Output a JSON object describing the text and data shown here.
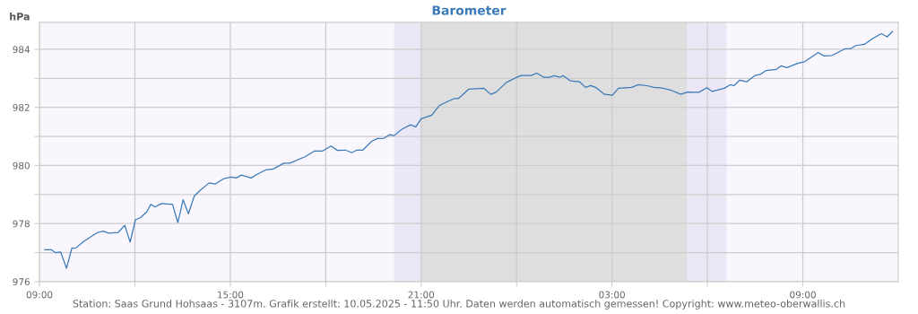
{
  "chart_data": {
    "type": "line",
    "title": "Barometer",
    "ylabel": "hPa",
    "x": [
      "2025-05-09T09:10",
      "2025-05-09T09:22",
      "2025-05-09T09:30",
      "2025-05-09T09:40",
      "2025-05-09T09:51",
      "2025-05-09T10:01",
      "2025-05-09T10:09",
      "2025-05-09T10:23",
      "2025-05-09T10:49",
      "2025-05-09T11:00",
      "2025-05-09T11:11",
      "2025-05-09T11:28",
      "2025-05-09T11:41",
      "2025-05-09T11:51",
      "2025-05-09T12:01",
      "2025-05-09T12:10",
      "2025-05-09T12:22",
      "2025-05-09T12:30",
      "2025-05-09T12:38",
      "2025-05-09T12:50",
      "2025-05-09T13:11",
      "2025-05-09T13:21",
      "2025-05-09T13:31",
      "2025-05-09T13:41",
      "2025-05-09T13:52",
      "2025-05-09T14:03",
      "2025-05-09T14:20",
      "2025-05-09T14:31",
      "2025-05-09T14:48",
      "2025-05-09T15:02",
      "2025-05-09T15:11",
      "2025-05-09T15:21",
      "2025-05-09T15:39",
      "2025-05-09T15:50",
      "2025-05-09T16:07",
      "2025-05-09T16:21",
      "2025-05-09T16:41",
      "2025-05-09T16:52",
      "2025-05-09T17:21",
      "2025-05-09T17:39",
      "2025-05-09T17:54",
      "2025-05-09T18:10",
      "2025-05-09T18:22",
      "2025-05-09T18:37",
      "2025-05-09T18:49",
      "2025-05-09T18:59",
      "2025-05-09T19:10",
      "2025-05-09T19:27",
      "2025-05-09T19:38",
      "2025-05-09T19:50",
      "2025-05-09T20:01",
      "2025-05-09T20:09",
      "2025-05-09T20:23",
      "2025-05-09T20:40",
      "2025-05-09T20:50",
      "2025-05-09T21:00",
      "2025-05-09T21:20",
      "2025-05-09T21:34",
      "2025-05-09T21:45",
      "2025-05-09T22:02",
      "2025-05-09T22:10",
      "2025-05-09T22:30",
      "2025-05-09T22:58",
      "2025-05-09T23:11",
      "2025-05-09T23:21",
      "2025-05-09T23:41",
      "2025-05-09T23:58",
      "2025-05-10T00:09",
      "2025-05-10T00:28",
      "2025-05-10T00:38",
      "2025-05-10T00:51",
      "2025-05-10T01:02",
      "2025-05-10T01:11",
      "2025-05-10T01:22",
      "2025-05-10T01:28",
      "2025-05-10T01:42",
      "2025-05-10T01:59",
      "2025-05-10T02:10",
      "2025-05-10T02:20",
      "2025-05-10T02:29",
      "2025-05-10T02:46",
      "2025-05-10T03:01",
      "2025-05-10T03:12",
      "2025-05-10T03:37",
      "2025-05-10T03:50",
      "2025-05-10T04:08",
      "2025-05-10T04:19",
      "2025-05-10T04:34",
      "2025-05-10T04:50",
      "2025-05-10T05:10",
      "2025-05-10T05:22",
      "2025-05-10T05:35",
      "2025-05-10T05:44",
      "2025-05-10T05:59",
      "2025-05-10T06:09",
      "2025-05-10T06:32",
      "2025-05-10T06:43",
      "2025-05-10T06:50",
      "2025-05-10T07:01",
      "2025-05-10T07:14",
      "2025-05-10T07:30",
      "2025-05-10T07:40",
      "2025-05-10T07:51",
      "2025-05-10T08:10",
      "2025-05-10T08:19",
      "2025-05-10T08:30",
      "2025-05-10T08:49",
      "2025-05-10T09:04",
      "2025-05-10T09:29",
      "2025-05-10T09:40",
      "2025-05-10T09:55",
      "2025-05-10T10:20",
      "2025-05-10T10:30",
      "2025-05-10T10:40",
      "2025-05-10T10:56",
      "2025-05-10T11:11",
      "2025-05-10T11:28",
      "2025-05-10T11:39",
      "2025-05-10T11:49"
    ],
    "series": [
      {
        "color": "#3a7ab8",
        "values": [
          977.1,
          977.1,
          977.0,
          977.02,
          976.46,
          977.15,
          977.16,
          977.38,
          977.69,
          977.74,
          977.67,
          977.69,
          977.94,
          977.36,
          978.13,
          978.2,
          978.39,
          978.66,
          978.57,
          978.69,
          978.66,
          978.03,
          978.82,
          978.34,
          978.95,
          979.14,
          979.4,
          979.36,
          979.55,
          979.6,
          979.57,
          979.67,
          979.57,
          979.69,
          979.85,
          979.88,
          980.08,
          980.08,
          980.3,
          980.5,
          980.5,
          980.67,
          980.52,
          980.53,
          980.44,
          980.53,
          980.53,
          980.84,
          980.93,
          980.94,
          981.06,
          981.03,
          981.24,
          981.4,
          981.33,
          981.61,
          981.73,
          982.06,
          982.16,
          982.3,
          982.3,
          982.63,
          982.66,
          982.45,
          982.52,
          982.86,
          983.02,
          983.1,
          983.1,
          983.18,
          983.04,
          983.04,
          983.09,
          983.04,
          983.09,
          982.91,
          982.88,
          982.69,
          982.75,
          982.69,
          982.45,
          982.42,
          982.66,
          982.69,
          982.78,
          982.74,
          982.69,
          982.67,
          982.6,
          982.45,
          982.53,
          982.52,
          982.52,
          982.68,
          982.55,
          982.66,
          982.78,
          982.75,
          982.94,
          982.88,
          983.1,
          983.14,
          983.27,
          983.31,
          983.43,
          983.37,
          983.51,
          983.58,
          983.89,
          983.77,
          983.79,
          984.02,
          984.02,
          984.13,
          984.17,
          984.36,
          984.54,
          984.43,
          984.61
        ]
      }
    ],
    "xlim": [
      "2025-05-09T09:00",
      "2025-05-10T12:00"
    ],
    "xticks": [
      {
        "value": "2025-05-09T09:00",
        "label": "09:00"
      },
      {
        "value": "2025-05-09T12:00",
        "label": null
      },
      {
        "value": "2025-05-09T15:00",
        "label": "15:00"
      },
      {
        "value": "2025-05-09T18:00",
        "label": null
      },
      {
        "value": "2025-05-09T21:00",
        "label": "21:00"
      },
      {
        "value": "2025-05-10T00:00",
        "label": null
      },
      {
        "value": "2025-05-10T03:00",
        "label": "03:00"
      },
      {
        "value": "2025-05-10T06:00",
        "label": null
      },
      {
        "value": "2025-05-10T09:00",
        "label": "09:00"
      }
    ],
    "ylim": [
      976,
      984.93
    ],
    "yticks": [
      976,
      {
        "value": 977,
        "label": null
      },
      978,
      {
        "value": 979,
        "label": null
      },
      980,
      {
        "value": 981,
        "label": null
      },
      982,
      {
        "value": 983,
        "label": null
      },
      984
    ],
    "bands": [
      {
        "axis": "x",
        "from": "2025-05-09T20:09",
        "to": "2025-05-09T21:00",
        "color": "#ece7f7"
      },
      {
        "axis": "x",
        "from": "2025-05-09T21:00",
        "to": "2025-05-10T05:22",
        "color": "#dedede"
      },
      {
        "axis": "x",
        "from": "2025-05-10T05:22",
        "to": "2025-05-10T06:36",
        "color": "#ece7f7"
      }
    ],
    "grid": true,
    "legend": false,
    "marker": "none",
    "line_style": "solid",
    "annotations": [
      "Station: Saas Grund Hohsaas - 3107m. Grafik erstellt: 10.05.2025 - 11:50 Uhr. Daten werden automatisch gemessen! Copyright: www.meteo-oberwallis.ch"
    ]
  }
}
